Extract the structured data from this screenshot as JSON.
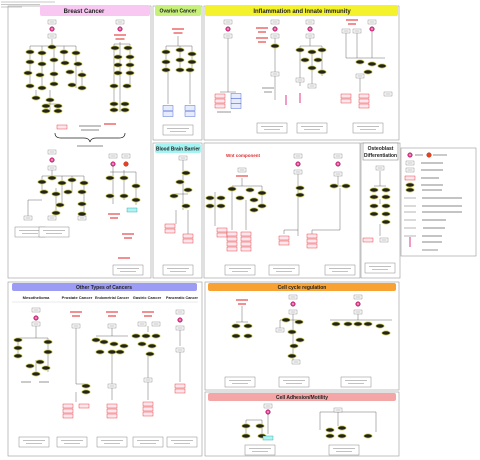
{
  "panels": {
    "breast_cancer": {
      "title": "Breast Cancer",
      "color": "#f8c8f2"
    },
    "ovarian_cancer": {
      "title": "Ovarian Cancer",
      "color": "#c6f07a"
    },
    "inflammation": {
      "title": "Inflammation and Innate immunity",
      "color": "#f4f22c"
    },
    "blood_brain_barrier": {
      "title": "Blood Brain Barrier",
      "color": "#a4f4f4"
    },
    "wnt": {
      "title": "Wnt component",
      "color": "#e0282a"
    },
    "osteoblast": {
      "title": [
        "Osteoblast",
        "Differentiation"
      ]
    },
    "other_cancers": {
      "title": "Other Types of Cancers",
      "color": "#9c9cf4",
      "subsections": [
        "Mesothelioma",
        "Prostate Cancer",
        "Endometrial Cancer",
        "Gastric Cancer",
        "Pancreatic Cancer"
      ]
    },
    "cell_cycle": {
      "title": "Cell cycle regulation",
      "color": "#f7a232"
    },
    "cell_adhesion": {
      "title": "Cell Adhesion/Motility",
      "color": "#f4a6a6"
    }
  },
  "colors": {
    "node_fill": "#23231a",
    "node_stroke": "#d6d65a",
    "marker": "#e2348c",
    "receptor": "#e8421e",
    "label_red": "#e22020",
    "edge": "#444444",
    "pink_box": "#fde6ee",
    "blue_box": "#e6ecfc",
    "cyan_box": "#aef4f4"
  }
}
